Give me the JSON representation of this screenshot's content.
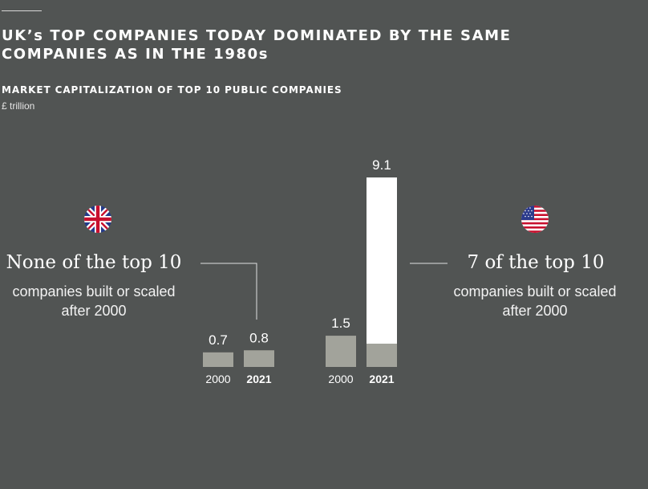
{
  "title": {
    "line1": "UK’s TOP COMPANIES TODAY DOMINATED BY THE SAME",
    "line2": "COMPANIES AS IN THE 1980s"
  },
  "subtitle": "MARKET CAPITALIZATION OF TOP 10 PUBLIC COMPANIES",
  "unit": "£ trillion",
  "uk": {
    "headline": "None of the top 10",
    "desc_line1": "companies built or scaled",
    "desc_line2": "after 2000"
  },
  "us": {
    "headline": "7 of the top 10",
    "desc_line1": "companies built or scaled",
    "desc_line2": "after 2000"
  },
  "colors": {
    "background": "#515453",
    "bar_grey": "#a2a39b",
    "bar_white": "#ffffff",
    "connector": "#e0e0e0"
  },
  "chart_data": [
    {
      "type": "bar",
      "group": "uk",
      "categories": [
        "2000",
        "2021"
      ],
      "values": [
        0.7,
        0.8
      ],
      "data_labels": [
        "0.7",
        "0.8"
      ],
      "bold_category": "2021",
      "ylim": [
        0,
        9.1
      ]
    },
    {
      "type": "bar",
      "group": "us",
      "categories": [
        "2000",
        "2021"
      ],
      "values": [
        1.5,
        9.1
      ],
      "data_labels": [
        "1.5",
        "9.1"
      ],
      "bold_category": "2021",
      "ylim": [
        0,
        9.1
      ]
    }
  ]
}
